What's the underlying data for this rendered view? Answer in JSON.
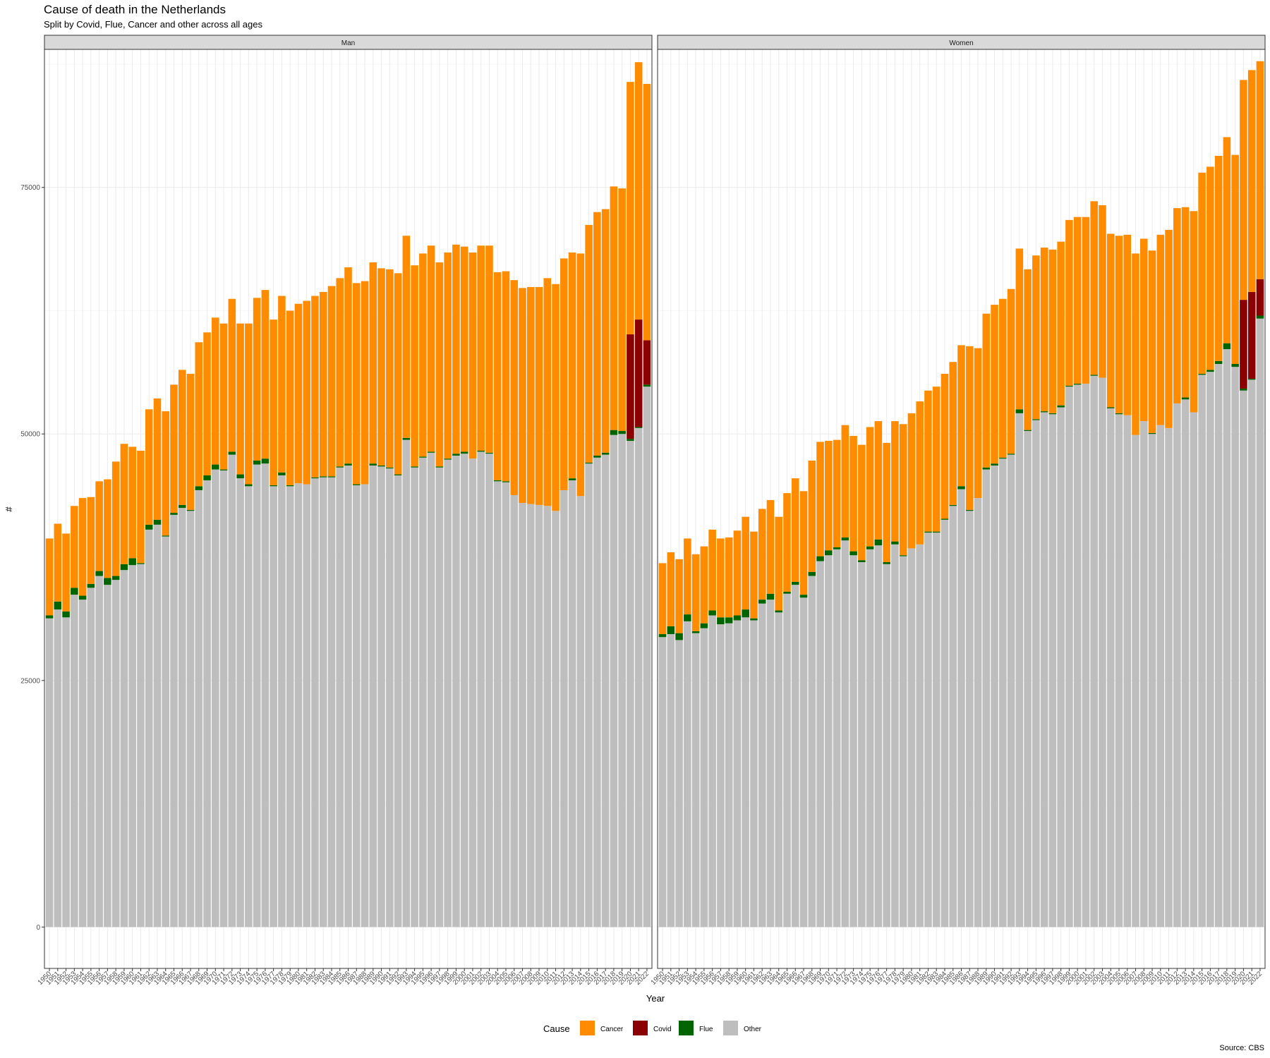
{
  "title": "Cause of death in the Netherlands",
  "subtitle": "Split by Covid, Flue, Cancer and other across all ages",
  "caption": "Source: CBS",
  "colors": {
    "Cancer": "#ff8c00",
    "Covid": "#8b0000",
    "Flue": "#006400",
    "Other": "#bebebe"
  },
  "chart_data": {
    "type": "bar",
    "stacked": true,
    "xlabel": "Year",
    "ylabel": "#",
    "ylim": [
      -4200,
      89000
    ],
    "yticks": [
      0,
      25000,
      50000,
      75000
    ],
    "legend": {
      "title": "Cause",
      "position": "bottom",
      "entries": [
        "Cancer",
        "Covid",
        "Flue",
        "Other"
      ]
    },
    "stack_order_bottom_to_top": [
      "Other",
      "Flue",
      "Covid",
      "Cancer"
    ],
    "categories": [
      "1950",
      "1951",
      "1952",
      "1953",
      "1954",
      "1955",
      "1956",
      "1957",
      "1958",
      "1959",
      "1960",
      "1961",
      "1962",
      "1963",
      "1964",
      "1965",
      "1966",
      "1967",
      "1968",
      "1969",
      "1970",
      "1971",
      "1972",
      "1973",
      "1974",
      "1975",
      "1976",
      "1977",
      "1978",
      "1979",
      "1980",
      "1981",
      "1982",
      "1983",
      "1984",
      "1985",
      "1986",
      "1987",
      "1988",
      "1989",
      "1990",
      "1991",
      "1992",
      "1993",
      "1994",
      "1995",
      "1996",
      "1997",
      "1998",
      "1999",
      "2000",
      "2001",
      "2002",
      "2003",
      "2004",
      "2005",
      "2006",
      "2007",
      "2008",
      "2009",
      "2010",
      "2011",
      "2012",
      "2013",
      "2014",
      "2015",
      "2016",
      "2017",
      "2018",
      "2019",
      "2020",
      "2021",
      "2022"
    ],
    "panels": [
      {
        "name": "Man",
        "series": [
          {
            "name": "Other",
            "values": [
              31300,
              32200,
              31400,
              33700,
              33200,
              34400,
              35600,
              34700,
              35200,
              36200,
              36700,
              36800,
              40300,
              40800,
              39600,
              41800,
              42500,
              42200,
              44300,
              45300,
              46400,
              46300,
              47900,
              45500,
              44700,
              46900,
              47000,
              44700,
              45800,
              44700,
              45000,
              44900,
              45500,
              45600,
              45600,
              46600,
              46800,
              44800,
              44900,
              46800,
              46700,
              46500,
              45800,
              49400,
              46600,
              47600,
              48100,
              46600,
              47400,
              47800,
              48000,
              47500,
              48200,
              48000,
              45200,
              45100,
              43800,
              43000,
              42900,
              42800,
              42700,
              42200,
              44300,
              45300,
              43700,
              47000,
              47600,
              47900,
              49900,
              50000,
              49300,
              50600,
              54800
            ]
          },
          {
            "name": "Flue",
            "values": [
              300,
              800,
              600,
              700,
              400,
              400,
              500,
              700,
              400,
              600,
              700,
              100,
              500,
              500,
              100,
              200,
              300,
              100,
              400,
              500,
              500,
              100,
              300,
              400,
              200,
              400,
              500,
              100,
              300,
              100,
              0,
              0,
              100,
              100,
              100,
              100,
              200,
              100,
              0,
              200,
              100,
              100,
              100,
              200,
              100,
              100,
              100,
              100,
              100,
              200,
              200,
              0,
              100,
              100,
              100,
              100,
              0,
              0,
              0,
              0,
              0,
              0,
              0,
              200,
              0,
              100,
              200,
              200,
              500,
              300,
              200,
              100,
              200
            ]
          },
          {
            "name": "Covid",
            "values": [
              0,
              0,
              0,
              0,
              0,
              0,
              0,
              0,
              0,
              0,
              0,
              0,
              0,
              0,
              0,
              0,
              0,
              0,
              0,
              0,
              0,
              0,
              0,
              0,
              0,
              0,
              0,
              0,
              0,
              0,
              0,
              0,
              0,
              0,
              0,
              0,
              0,
              0,
              0,
              0,
              0,
              0,
              0,
              0,
              0,
              0,
              0,
              0,
              0,
              0,
              0,
              0,
              0,
              0,
              0,
              0,
              0,
              0,
              0,
              0,
              0,
              0,
              0,
              0,
              0,
              0,
              0,
              0,
              0,
              0,
              10600,
              10900,
              4500
            ]
          },
          {
            "name": "Cancer",
            "values": [
              7800,
              7900,
              7900,
              8300,
              9900,
              8800,
              9100,
              10000,
              11600,
              12200,
              11300,
              11400,
              11700,
              12300,
              12600,
              13000,
              13700,
              13800,
              14600,
              14500,
              14900,
              14800,
              15500,
              15300,
              16300,
              16500,
              17100,
              16800,
              17900,
              17700,
              18200,
              18600,
              18400,
              18700,
              19300,
              19100,
              19900,
              20400,
              20600,
              20400,
              20000,
              20100,
              20400,
              20500,
              20400,
              20600,
              20900,
              20700,
              20900,
              21200,
              20800,
              20900,
              20800,
              21000,
              21100,
              21300,
              21800,
              21800,
              22000,
              22100,
              23100,
              23000,
              23500,
              22900,
              24600,
              24100,
              24700,
              24700,
              24700,
              24600,
              25600,
              26100,
              26000
            ]
          }
        ]
      },
      {
        "name": "Women",
        "series": [
          {
            "name": "Other",
            "values": [
              29400,
              29700,
              29100,
              31000,
              29800,
              30300,
              31600,
              30700,
              30800,
              31100,
              31400,
              31100,
              32800,
              33200,
              31900,
              33800,
              34700,
              33400,
              35600,
              37100,
              37700,
              38300,
              39200,
              37700,
              37000,
              38300,
              38700,
              36800,
              38800,
              37600,
              38400,
              38800,
              40000,
              40000,
              41300,
              42700,
              44400,
              42200,
              43500,
              46400,
              46800,
              47500,
              47900,
              52100,
              50300,
              51400,
              52200,
              52000,
              52700,
              54800,
              55000,
              55100,
              55900,
              55700,
              52600,
              52000,
              51900,
              49900,
              51300,
              50000,
              50900,
              50600,
              53100,
              53500,
              52200,
              56000,
              56300,
              57100,
              58600,
              56800,
              54400,
              55500,
              61700
            ]
          },
          {
            "name": "Flue",
            "values": [
              300,
              800,
              700,
              700,
              200,
              500,
              500,
              700,
              600,
              500,
              800,
              200,
              400,
              600,
              200,
              200,
              300,
              300,
              400,
              500,
              500,
              200,
              300,
              400,
              200,
              300,
              600,
              200,
              300,
              100,
              0,
              0,
              100,
              100,
              100,
              100,
              300,
              100,
              0,
              200,
              200,
              100,
              100,
              400,
              100,
              100,
              100,
              100,
              200,
              100,
              100,
              0,
              100,
              0,
              100,
              100,
              0,
              0,
              0,
              100,
              0,
              0,
              0,
              200,
              0,
              100,
              200,
              300,
              600,
              300,
              200,
              100,
              300
            ]
          },
          {
            "name": "Covid",
            "values": [
              0,
              0,
              0,
              0,
              0,
              0,
              0,
              0,
              0,
              0,
              0,
              0,
              0,
              0,
              0,
              0,
              0,
              0,
              0,
              0,
              0,
              0,
              0,
              0,
              0,
              0,
              0,
              0,
              0,
              0,
              0,
              0,
              0,
              0,
              0,
              0,
              0,
              0,
              0,
              0,
              0,
              0,
              0,
              0,
              0,
              0,
              0,
              0,
              0,
              0,
              0,
              0,
              0,
              0,
              0,
              0,
              0,
              0,
              0,
              0,
              0,
              0,
              0,
              0,
              0,
              0,
              0,
              0,
              0,
              0,
              9000,
              8800,
              3700
            ]
          },
          {
            "name": "Cancer",
            "values": [
              7200,
              7500,
              7500,
              7700,
              7800,
              7800,
              8200,
              8000,
              8100,
              8600,
              9400,
              8800,
              9200,
              9500,
              9500,
              10000,
              10500,
              10500,
              11300,
              11600,
              11100,
              10900,
              11400,
              11700,
              11700,
              12100,
              12000,
              12100,
              12200,
              13300,
              13700,
              14500,
              14300,
              14700,
              14700,
              14500,
              14300,
              16600,
              15200,
              15600,
              16100,
              16100,
              16700,
              16300,
              16300,
              16600,
              16600,
              16600,
              16600,
              16800,
              16900,
              16900,
              17600,
              17500,
              17600,
              18000,
              18300,
              18400,
              18500,
              18500,
              19300,
              20100,
              19800,
              19300,
              20400,
              20400,
              20600,
              20800,
              20900,
              21200,
              22300,
              22500,
              22100
            ]
          }
        ]
      }
    ]
  }
}
